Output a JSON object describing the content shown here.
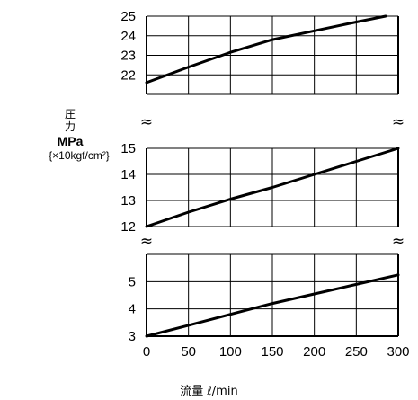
{
  "chart_data": {
    "type": "line",
    "xlabel": "流量 ℓ/min",
    "ylabel": {
      "line1": "圧",
      "line2": "力",
      "unit": "MPa",
      "unit_alt": "{×10kgf/cm²}"
    },
    "x_ticks": [
      0,
      50,
      100,
      150,
      200,
      250,
      300
    ],
    "xlim": [
      0,
      300
    ],
    "grid": true,
    "y_break_symbol": "≈",
    "panels": [
      {
        "ylim": [
          21,
          25
        ],
        "y_ticks": [
          22,
          23,
          24,
          25
        ],
        "series": [
          {
            "x": [
              0,
              50,
              100,
              150,
              200,
              250,
              285
            ],
            "y": [
              21.6,
              22.4,
              23.15,
              23.8,
              24.25,
              24.7,
              25.0
            ]
          }
        ]
      },
      {
        "ylim": [
          12,
          15
        ],
        "y_ticks": [
          12,
          13,
          14,
          15
        ],
        "series": [
          {
            "x": [
              0,
              50,
              100,
              150,
              200,
              250,
              300
            ],
            "y": [
              12.0,
              12.55,
              13.05,
              13.5,
              14.0,
              14.5,
              15.0
            ]
          }
        ]
      },
      {
        "ylim": [
          3,
          6
        ],
        "y_ticks": [
          3,
          4,
          5
        ],
        "series": [
          {
            "x": [
              0,
              50,
              100,
              150,
              200,
              250,
              300
            ],
            "y": [
              3.0,
              3.4,
              3.8,
              4.2,
              4.55,
              4.9,
              5.25
            ]
          }
        ]
      }
    ]
  }
}
